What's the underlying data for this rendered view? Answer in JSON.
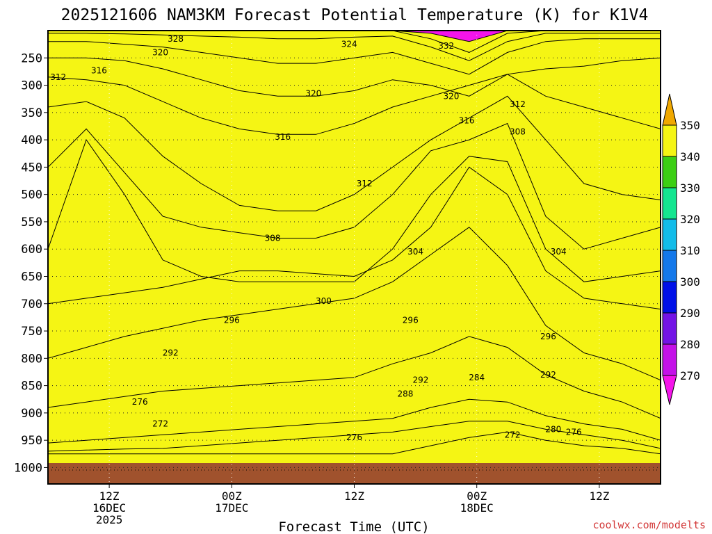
{
  "chart_data": {
    "type": "heatmap",
    "title": "2025121606 NAM3KM Forecast Potential Temperature (K) for K1V4",
    "xlabel": "Forecast Time (UTC)",
    "ylabel": "",
    "credit": "coolwx.com/modelts",
    "x_ticks": [
      {
        "hour": 6,
        "lines": [
          "12Z",
          "16DEC",
          "2025"
        ]
      },
      {
        "hour": 18,
        "lines": [
          "00Z",
          "17DEC"
        ]
      },
      {
        "hour": 30,
        "lines": [
          "12Z"
        ]
      },
      {
        "hour": 42,
        "lines": [
          "00Z",
          "18DEC"
        ]
      },
      {
        "hour": 54,
        "lines": [
          "12Z"
        ]
      }
    ],
    "x_range_hours": [
      0,
      60
    ],
    "y_ticks": [
      250,
      300,
      350,
      400,
      450,
      500,
      550,
      600,
      650,
      700,
      750,
      800,
      850,
      900,
      950,
      1000
    ],
    "y_range_hpa": [
      200,
      1030
    ],
    "colorbar": {
      "ticks": [
        350,
        340,
        330,
        320,
        310,
        300,
        290,
        280,
        270
      ],
      "bins": [
        {
          "lo": 350,
          "hi": 360,
          "color": "#f0a800"
        },
        {
          "lo": 340,
          "hi": 350,
          "color": "#f5f514"
        },
        {
          "lo": 330,
          "hi": 340,
          "color": "#3ccf14"
        },
        {
          "lo": 320,
          "hi": 330,
          "color": "#14e690"
        },
        {
          "lo": 310,
          "hi": 320,
          "color": "#12bce9"
        },
        {
          "lo": 300,
          "hi": 310,
          "color": "#1478ea"
        },
        {
          "lo": 290,
          "hi": 300,
          "color": "#0010e8"
        },
        {
          "lo": 280,
          "hi": 290,
          "color": "#7314e6"
        },
        {
          "lo": 270,
          "hi": 280,
          "color": "#c412e8"
        },
        {
          "lo": 260,
          "hi": 270,
          "color": "#f414ea"
        }
      ]
    },
    "ground_color": "#a0522d",
    "isentropes": [
      {
        "theta": 270,
        "p": [
          975,
          975,
          975,
          975,
          975,
          975,
          975,
          975,
          975,
          975,
          960,
          945,
          935,
          950,
          960,
          965,
          975
        ]
      },
      {
        "theta": 275,
        "p": [
          970,
          968,
          966,
          965,
          960,
          955,
          950,
          945,
          940,
          935,
          925,
          915,
          915,
          930,
          940,
          950,
          965
        ]
      },
      {
        "theta": 280,
        "p": [
          955,
          950,
          945,
          940,
          935,
          930,
          925,
          920,
          915,
          910,
          890,
          875,
          880,
          905,
          920,
          930,
          950
        ]
      },
      {
        "theta": 285,
        "p": [
          890,
          880,
          870,
          860,
          855,
          850,
          845,
          840,
          835,
          810,
          790,
          760,
          780,
          830,
          860,
          880,
          910
        ]
      },
      {
        "theta": 290,
        "p": [
          800,
          780,
          760,
          745,
          730,
          720,
          710,
          700,
          690,
          660,
          610,
          560,
          630,
          740,
          790,
          810,
          840
        ]
      },
      {
        "theta": 295,
        "p": [
          700,
          690,
          680,
          670,
          655,
          640,
          640,
          645,
          650,
          620,
          560,
          450,
          500,
          640,
          690,
          700,
          710
        ]
      },
      {
        "theta": 300,
        "p": [
          600,
          400,
          500,
          620,
          650,
          660,
          660,
          660,
          660,
          600,
          500,
          430,
          440,
          600,
          660,
          650,
          640
        ]
      },
      {
        "theta": 305,
        "p": [
          450,
          380,
          460,
          540,
          560,
          570,
          580,
          580,
          560,
          500,
          420,
          400,
          370,
          540,
          600,
          580,
          560
        ]
      },
      {
        "theta": 310,
        "p": [
          340,
          330,
          360,
          430,
          480,
          520,
          530,
          530,
          500,
          450,
          400,
          360,
          320,
          400,
          480,
          500,
          510
        ]
      },
      {
        "theta": 315,
        "p": [
          285,
          290,
          300,
          330,
          360,
          380,
          390,
          390,
          370,
          340,
          320,
          300,
          280,
          320,
          340,
          360,
          380
        ]
      },
      {
        "theta": 320,
        "p": [
          250,
          250,
          255,
          270,
          290,
          310,
          320,
          320,
          310,
          290,
          300,
          320,
          280,
          270,
          265,
          255,
          250
        ]
      },
      {
        "theta": 325,
        "p": [
          220,
          220,
          225,
          230,
          240,
          250,
          260,
          260,
          250,
          240,
          260,
          280,
          240,
          220,
          215,
          215,
          215
        ]
      },
      {
        "theta": 330,
        "p": [
          205,
          205,
          206,
          208,
          210,
          212,
          215,
          215,
          212,
          210,
          230,
          255,
          220,
          205,
          205,
          205,
          205
        ]
      },
      {
        "theta": 335,
        "p": [
          200,
          200,
          200,
          200,
          200,
          200,
          200,
          200,
          200,
          200,
          215,
          240,
          205,
          200,
          200,
          200,
          200
        ]
      },
      {
        "theta": 340,
        "p": [
          200,
          200,
          200,
          200,
          200,
          200,
          200,
          200,
          200,
          200,
          205,
          220,
          200,
          200,
          200,
          200,
          200
        ]
      }
    ],
    "contour_labels": [
      {
        "text": "328",
        "hour": 12.5,
        "p": 215
      },
      {
        "text": "324",
        "hour": 29.5,
        "p": 225
      },
      {
        "text": "332",
        "hour": 39.0,
        "p": 228
      },
      {
        "text": "320",
        "hour": 11.0,
        "p": 240
      },
      {
        "text": "316",
        "hour": 5.0,
        "p": 273
      },
      {
        "text": "312",
        "hour": 1.0,
        "p": 285
      },
      {
        "text": "320",
        "hour": 26.0,
        "p": 315
      },
      {
        "text": "320",
        "hour": 39.5,
        "p": 320
      },
      {
        "text": "312",
        "hour": 46.0,
        "p": 335
      },
      {
        "text": "316",
        "hour": 41.0,
        "p": 365
      },
      {
        "text": "308",
        "hour": 46.0,
        "p": 385
      },
      {
        "text": "316",
        "hour": 23.0,
        "p": 395
      },
      {
        "text": "312",
        "hour": 31.0,
        "p": 480
      },
      {
        "text": "308",
        "hour": 22.0,
        "p": 580
      },
      {
        "text": "304",
        "hour": 36.0,
        "p": 605
      },
      {
        "text": "304",
        "hour": 50.0,
        "p": 605
      },
      {
        "text": "300",
        "hour": 27.0,
        "p": 695
      },
      {
        "text": "296",
        "hour": 18.0,
        "p": 730
      },
      {
        "text": "296",
        "hour": 35.5,
        "p": 730
      },
      {
        "text": "296",
        "hour": 49.0,
        "p": 760
      },
      {
        "text": "292",
        "hour": 12.0,
        "p": 790
      },
      {
        "text": "292",
        "hour": 49.0,
        "p": 830
      },
      {
        "text": "292",
        "hour": 36.5,
        "p": 840
      },
      {
        "text": "284",
        "hour": 42.0,
        "p": 835
      },
      {
        "text": "288",
        "hour": 35.0,
        "p": 865
      },
      {
        "text": "276",
        "hour": 9.0,
        "p": 880
      },
      {
        "text": "272",
        "hour": 11.0,
        "p": 920
      },
      {
        "text": "280",
        "hour": 49.5,
        "p": 930
      },
      {
        "text": "276",
        "hour": 51.5,
        "p": 935
      },
      {
        "text": "272",
        "hour": 45.5,
        "p": 940
      },
      {
        "text": "276",
        "hour": 30.0,
        "p": 945
      }
    ]
  }
}
